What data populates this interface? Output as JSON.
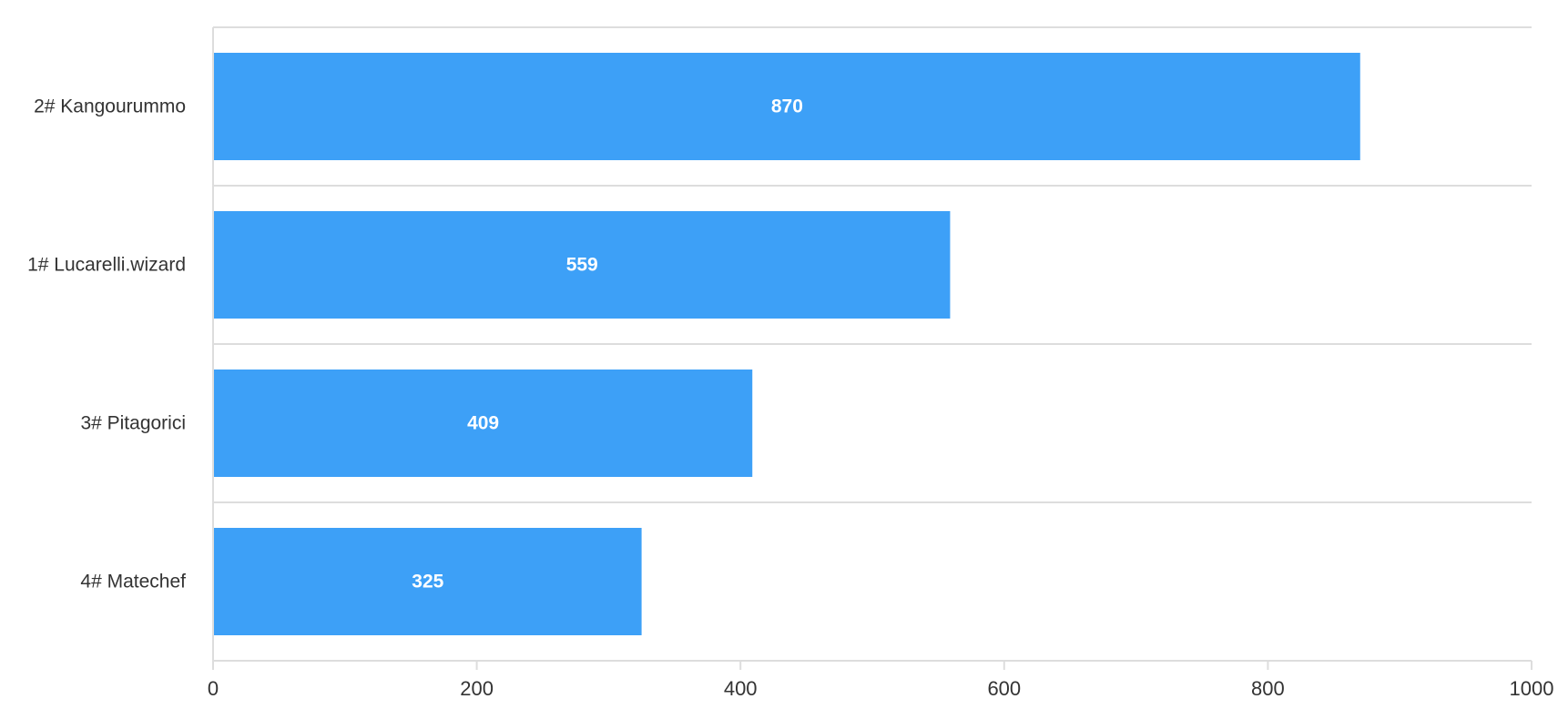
{
  "chart_data": {
    "type": "bar",
    "orientation": "horizontal",
    "categories": [
      "2# Kangourummo",
      "1# Lucarelli.wizard",
      "3# Pitagorici",
      "4# Matechef"
    ],
    "values": [
      870,
      559,
      409,
      325
    ],
    "xlim": [
      0,
      1000
    ],
    "xticks": [
      0,
      200,
      400,
      600,
      800,
      1000
    ],
    "title": "",
    "xlabel": "",
    "ylabel": "",
    "data_labels": true,
    "grid": true,
    "legend": "none",
    "colors": {
      "bar": "#3da0f7",
      "value_label": "#ffffff",
      "text": "#333333",
      "grid": "#dddddd"
    }
  }
}
